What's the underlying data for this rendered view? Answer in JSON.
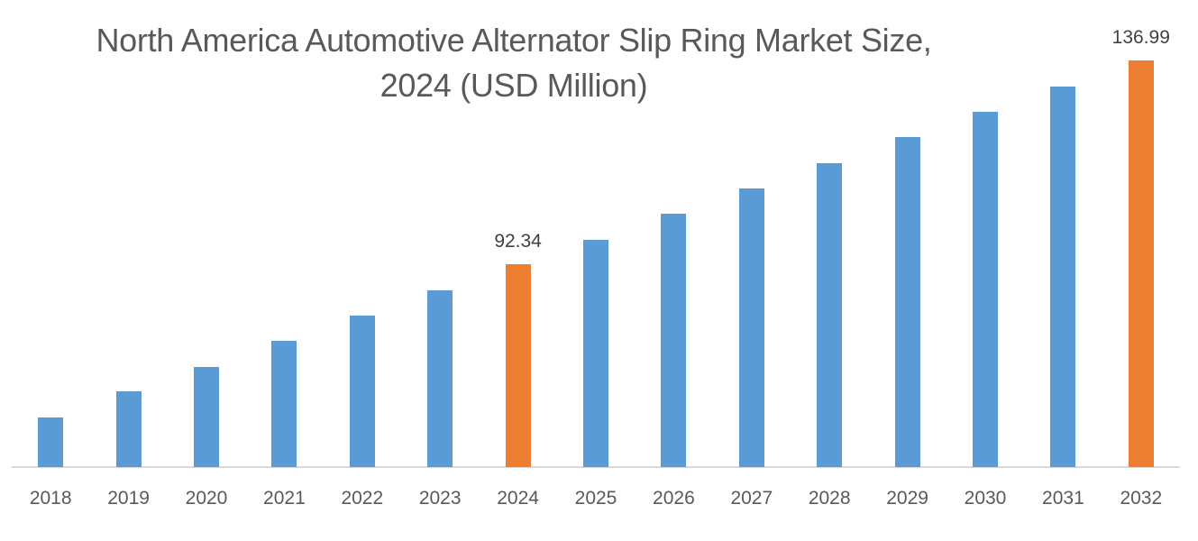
{
  "chart_data": {
    "type": "bar",
    "title": "North America Automotive Alternator Slip Ring Market Size, 2024 (USD Million)",
    "title_lines": [
      "North America Automotive Alternator Slip Ring Market Size,",
      "2024 (USD Million)"
    ],
    "xlabel": "",
    "ylabel": "",
    "categories": [
      "2018",
      "2019",
      "2020",
      "2021",
      "2022",
      "2023",
      "2024",
      "2025",
      "2026",
      "2027",
      "2028",
      "2029",
      "2030",
      "2031",
      "2032"
    ],
    "series": [
      {
        "name": "Market Size (USD Million)",
        "values": [
          58.8,
          64.5,
          69.8,
          75.6,
          81.1,
          86.6,
          92.34,
          97.7,
          103.4,
          109.0,
          114.5,
          120.2,
          125.7,
          131.3,
          136.99
        ]
      }
    ],
    "data_labels": [
      {
        "category": "2024",
        "text": "92.34"
      },
      {
        "category": "2032",
        "text": "136.99"
      }
    ],
    "highlight_categories": [
      "2024",
      "2032"
    ],
    "colors": {
      "default": "#5b9bd5",
      "highlight": "#ed7d31",
      "axis": "#d9d9d9",
      "text": "#595959"
    },
    "ylim": [
      47.9,
      140
    ],
    "grid": false,
    "legend": "none",
    "y_axis_visible": false
  }
}
